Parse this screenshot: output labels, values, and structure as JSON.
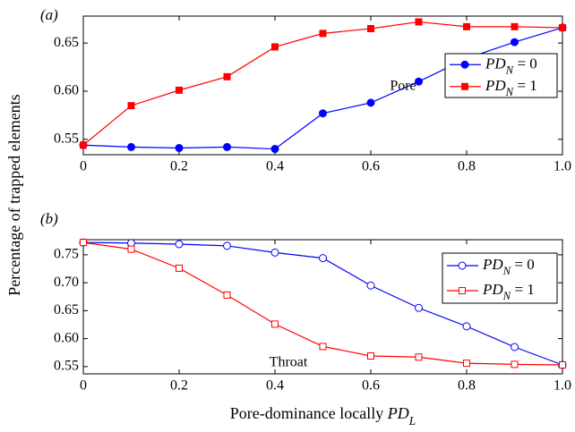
{
  "ylabel": "Percentage of trapped elements",
  "chart_data": [
    {
      "type": "line",
      "label": "(a)",
      "annotation": "Pore",
      "marker_filled": true,
      "x": [
        0,
        0.1,
        0.2,
        0.3,
        0.4,
        0.5,
        0.6,
        0.7,
        0.8,
        0.9,
        1
      ],
      "series": [
        {
          "name": "PD_N = 0",
          "color": "#0000ff",
          "marker": "circle",
          "values": [
            0.544,
            0.542,
            0.541,
            0.542,
            0.54,
            0.577,
            0.588,
            0.61,
            0.634,
            0.651,
            0.666
          ]
        },
        {
          "name": "PD_N = 1",
          "color": "#ff0000",
          "marker": "square",
          "values": [
            0.544,
            0.585,
            0.601,
            0.615,
            0.646,
            0.66,
            0.665,
            0.672,
            0.667,
            0.667,
            0.666
          ]
        }
      ],
      "xlim": [
        0,
        1
      ],
      "ylim": [
        0.534,
        0.678
      ],
      "xticks": [
        0,
        0.2,
        0.4,
        0.6,
        0.8,
        {
          "value": 1,
          "label": "1.0"
        }
      ],
      "yticks": [
        0.55,
        {
          "value": 0.6,
          "label": "0.60"
        },
        0.65
      ]
    },
    {
      "type": "line",
      "label": "(b)",
      "annotation": "Throat",
      "marker_filled": false,
      "xlabel": "Pore-dominance locally PD_L",
      "x": [
        0,
        0.1,
        0.2,
        0.3,
        0.4,
        0.5,
        0.6,
        0.7,
        0.8,
        0.9,
        1
      ],
      "series": [
        {
          "name": "PD_N = 0",
          "color": "#0000ff",
          "marker": "circle",
          "values": [
            0.772,
            0.771,
            0.769,
            0.766,
            0.754,
            0.744,
            0.695,
            0.655,
            0.622,
            0.585,
            0.553
          ]
        },
        {
          "name": "PD_N = 1",
          "color": "#ff0000",
          "marker": "square",
          "values": [
            0.772,
            0.76,
            0.726,
            0.678,
            0.626,
            0.586,
            0.569,
            0.567,
            0.556,
            0.554,
            0.553
          ]
        }
      ],
      "xlim": [
        0,
        1
      ],
      "ylim": [
        0.537,
        0.777
      ],
      "xticks": [
        0,
        0.2,
        0.4,
        0.6,
        0.8,
        {
          "value": 1,
          "label": "1.0"
        }
      ],
      "yticks": [
        0.55,
        {
          "value": 0.6,
          "label": "0.60"
        },
        0.65,
        {
          "value": 0.7,
          "label": "0.70"
        },
        0.75
      ]
    }
  ]
}
